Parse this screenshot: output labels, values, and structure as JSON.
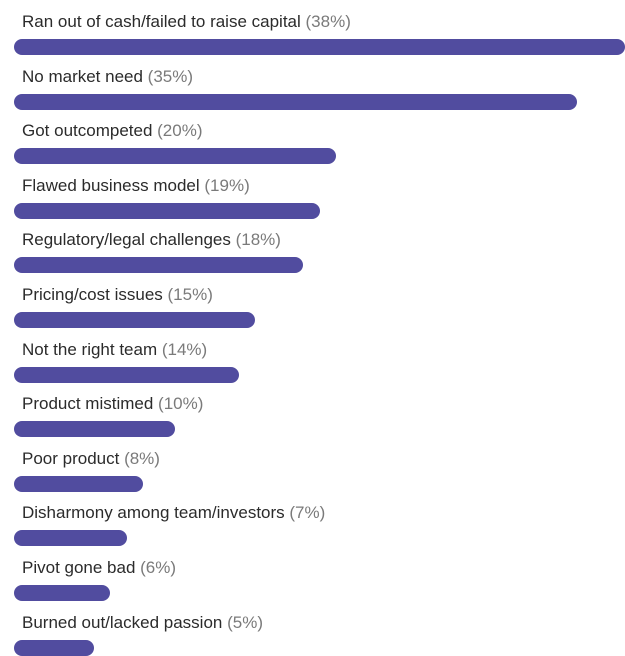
{
  "chart_data": {
    "type": "bar",
    "orientation": "horizontal",
    "categories": [
      "Ran out of cash/failed to raise capital",
      "No market need",
      "Got outcompeted",
      "Flawed business model",
      "Regulatory/legal challenges",
      "Pricing/cost issues",
      "Not the right team",
      "Product mistimed",
      "Poor product",
      "Disharmony among team/investors",
      "Pivot gone bad",
      "Burned out/lacked passion"
    ],
    "values": [
      38,
      35,
      20,
      19,
      18,
      15,
      14,
      10,
      8,
      7,
      6,
      5
    ],
    "value_labels": [
      "(38%)",
      "(35%)",
      "(20%)",
      "(19%)",
      "(18%)",
      "(15%)",
      "(14%)",
      "(10%)",
      "(8%)",
      "(7%)",
      "(6%)",
      "(5%)"
    ],
    "unit": "%",
    "grid": false,
    "legend": "none",
    "colors": {
      "bar": "#514c9f",
      "label": "#2b2b2b",
      "value_label": "#7a7a7a"
    }
  }
}
